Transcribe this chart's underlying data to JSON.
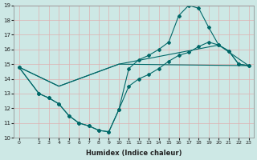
{
  "xlabel": "Humidex (Indice chaleur)",
  "xlim": [
    -0.5,
    23.5
  ],
  "ylim": [
    10,
    19
  ],
  "xticks": [
    0,
    2,
    3,
    4,
    5,
    6,
    7,
    8,
    9,
    10,
    11,
    12,
    13,
    14,
    15,
    16,
    17,
    18,
    19,
    20,
    21,
    22,
    23
  ],
  "yticks": [
    10,
    11,
    12,
    13,
    14,
    15,
    16,
    17,
    18,
    19
  ],
  "bg_color": "#cde8e5",
  "grid_color": "#ddb0b0",
  "line_color": "#006868",
  "line1_x": [
    0,
    2,
    3,
    4,
    5,
    6,
    7,
    8,
    9,
    10,
    11,
    12,
    13,
    14,
    15,
    16,
    17,
    18,
    19,
    20,
    21,
    22,
    23
  ],
  "line1_y": [
    14.8,
    13.0,
    12.7,
    12.3,
    11.5,
    11.0,
    10.8,
    10.5,
    10.4,
    11.9,
    14.7,
    15.3,
    15.6,
    16.0,
    16.5,
    18.3,
    19.0,
    18.8,
    17.5,
    16.3,
    15.9,
    15.0,
    14.9
  ],
  "line2_x": [
    0,
    2,
    3,
    4,
    5,
    6,
    7,
    8,
    9,
    10,
    11,
    12,
    13,
    14,
    15,
    16,
    17,
    18,
    19,
    20,
    21,
    22,
    23
  ],
  "line2_y": [
    14.8,
    13.0,
    12.7,
    12.3,
    11.5,
    11.0,
    10.8,
    10.5,
    10.4,
    11.9,
    13.5,
    14.0,
    14.3,
    14.7,
    15.2,
    15.6,
    15.8,
    16.2,
    16.5,
    16.3,
    15.9,
    15.0,
    14.9
  ],
  "line3_x": [
    0,
    4,
    10,
    23
  ],
  "line3_y": [
    14.8,
    13.5,
    15.0,
    14.9
  ],
  "line4_x": [
    0,
    4,
    10,
    20,
    23
  ],
  "line4_y": [
    14.8,
    13.5,
    15.0,
    16.3,
    14.9
  ]
}
